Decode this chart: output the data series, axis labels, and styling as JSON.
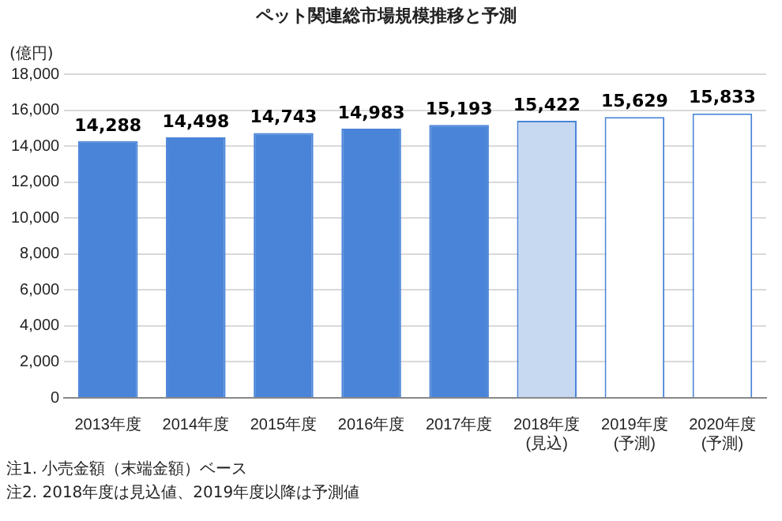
{
  "chart_data": {
    "type": "bar",
    "title": "ペット関連総市場規模推移と予測",
    "ylabel": "(億円)",
    "categories": [
      "2013年度",
      "2014年度",
      "2015年度",
      "2016年度",
      "2017年度",
      "2018年度\n(見込)",
      "2019年度\n(予測)",
      "2020年度\n(予測)"
    ],
    "values": [
      14288,
      14498,
      14743,
      14983,
      15193,
      15422,
      15629,
      15833
    ],
    "value_labels": [
      "14,288",
      "14,498",
      "14,743",
      "14,983",
      "15,193",
      "15,422",
      "15,629",
      "15,833"
    ],
    "colors": [
      "#4a84d8",
      "#4a84d8",
      "#4a84d8",
      "#4a84d8",
      "#4a84d8",
      "#c6d9f1",
      "#ffffff",
      "#ffffff"
    ],
    "ylim": [
      0,
      18000
    ],
    "yticks": [
      0,
      {
        "value": 2000,
        "label": "2,000"
      },
      {
        "value": 4000,
        "label": "4,000"
      },
      {
        "value": 6000,
        "label": "6,000"
      },
      {
        "value": 8000,
        "label": "8,000"
      },
      {
        "value": 10000,
        "label": "10,000"
      },
      {
        "value": 12000,
        "label": "12,000"
      },
      {
        "value": 14000,
        "label": "14,000"
      },
      {
        "value": 16000,
        "label": "16,000"
      },
      {
        "value": 18000,
        "label": "18,000"
      }
    ],
    "grid": "y",
    "annotations": [
      "注1. 小売金額（末端金額）ベース",
      "注2. 2018年度は見込値、2019年度以降は予測値"
    ]
  }
}
